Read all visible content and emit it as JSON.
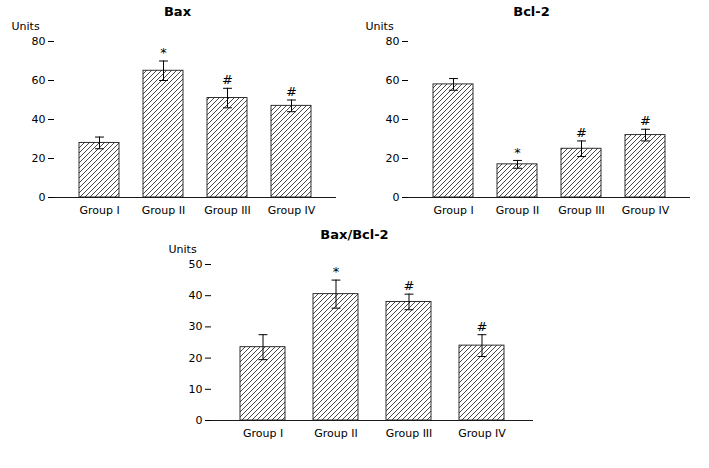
{
  "chart_data": [
    {
      "type": "bar",
      "title": "Bax",
      "categories": [
        "Group I",
        "Group II",
        "Group III",
        "Group IV"
      ],
      "values": [
        28,
        65,
        51,
        47
      ],
      "errors": [
        3,
        5,
        5,
        3
      ],
      "annotations": [
        null,
        "*",
        "#",
        "#"
      ],
      "ylabel": "Units",
      "ylim": [
        0,
        80
      ],
      "yticks": [
        0,
        20,
        40,
        60,
        80
      ],
      "color": "#ffffff",
      "grid": false
    },
    {
      "type": "bar",
      "title": "Bcl-2",
      "categories": [
        "Group I",
        "Group II",
        "Group III",
        "Group IV"
      ],
      "values": [
        58,
        17,
        25,
        32
      ],
      "errors": [
        3,
        2,
        4,
        3
      ],
      "annotations": [
        null,
        "*",
        "#",
        "#"
      ],
      "ylabel": "Units",
      "ylim": [
        0,
        80
      ],
      "yticks": [
        0,
        20,
        40,
        60,
        80
      ],
      "color": "#ffffff",
      "grid": false
    },
    {
      "type": "bar",
      "title": "Bax/Bcl-2",
      "categories": [
        "Group I",
        "Group II",
        "Group III",
        "Group IV"
      ],
      "values": [
        23.5,
        40.5,
        38,
        24
      ],
      "errors": [
        4,
        4.5,
        2.5,
        3.5
      ],
      "annotations": [
        null,
        "*",
        "#",
        "#"
      ],
      "ylabel": "Units",
      "ylim": [
        0,
        50
      ],
      "yticks": [
        0,
        10,
        20,
        30,
        40,
        50
      ],
      "color": "#ffffff",
      "grid": false
    }
  ]
}
